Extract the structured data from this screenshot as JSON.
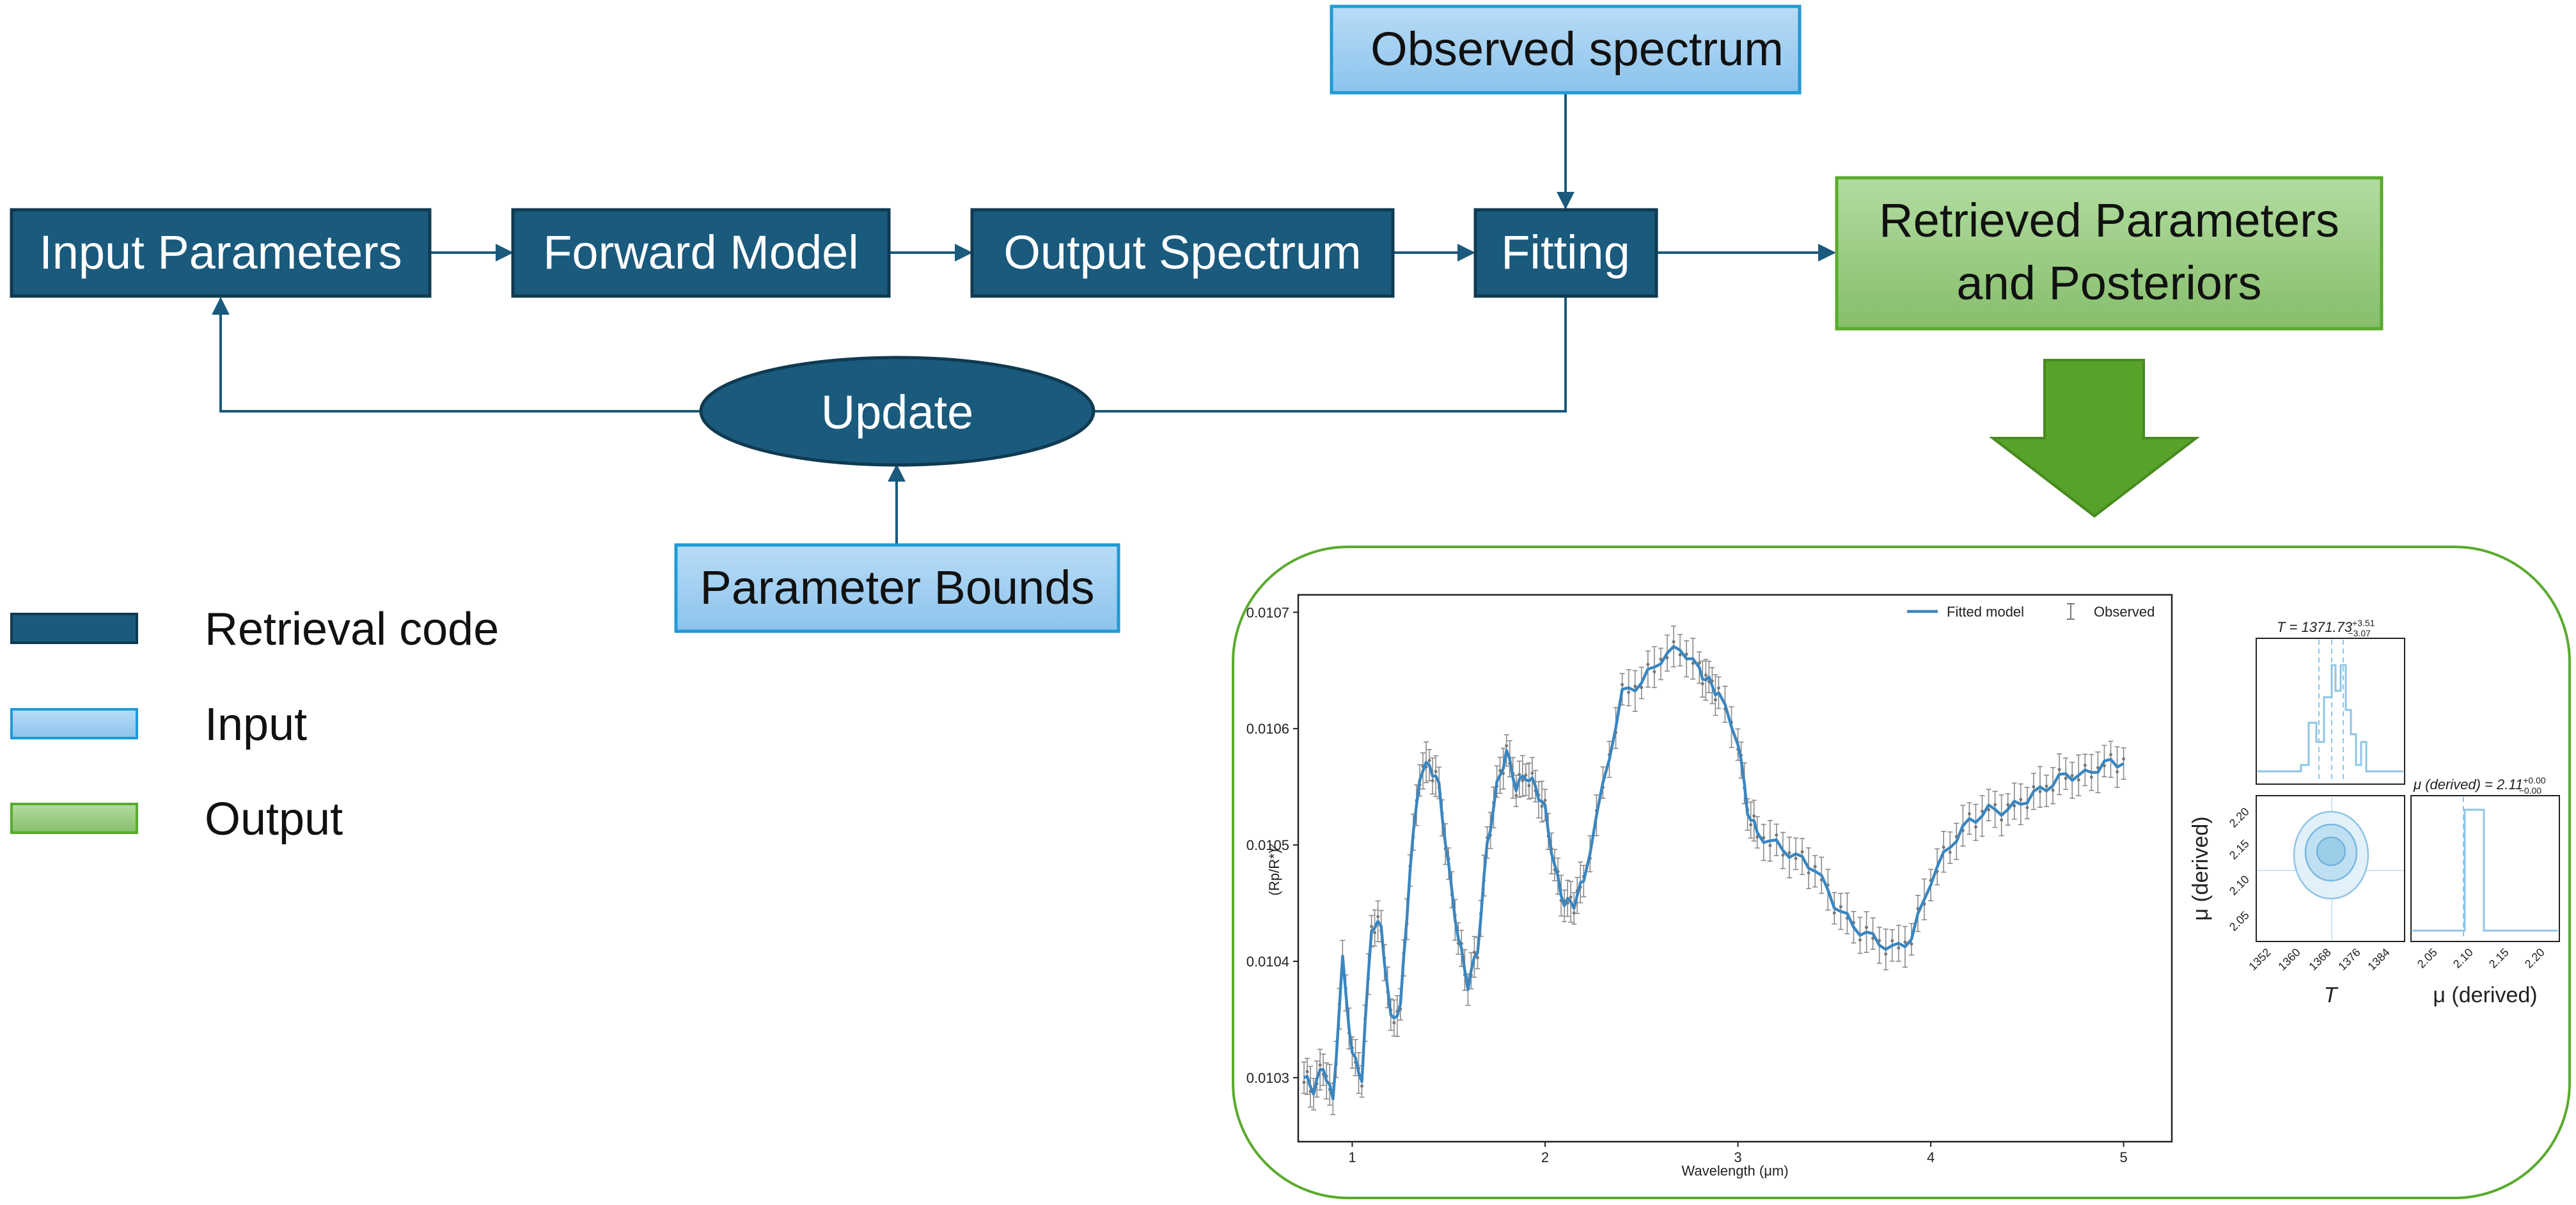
{
  "diagram": {
    "nodes": {
      "input_parameters": "Input Parameters",
      "forward_model": "Forward Model",
      "output_spectrum": "Output Spectrum",
      "fitting": "Fitting",
      "observed_spectrum": "Observed spectrum",
      "retrieved_line1": "Retrieved Parameters",
      "retrieved_line2": "and Posteriors",
      "update": "Update",
      "parameter_bounds": "Parameter Bounds"
    },
    "legend": [
      {
        "label": "Retrieval code",
        "color": "#1a5a7c"
      },
      {
        "label": "Input",
        "color": "#9ecdf0"
      },
      {
        "label": "Output",
        "color": "#93c77a"
      }
    ],
    "colors": {
      "retrieval_code": "#1a5a7c",
      "input": "#9ecdf0",
      "output": "#93c77a",
      "output_border": "#5aaa2e",
      "input_border": "#1f9ad6",
      "arrow": "#1a5a7c",
      "big_arrow": "#58a22b"
    }
  },
  "spectrum_plot": {
    "chart_data": {
      "type": "line",
      "xlabel": "Wavelength (μm)",
      "ylabel": "(Rp/R*)²",
      "xticks": [
        "1",
        "2",
        "3",
        "4",
        "5"
      ],
      "yticks": [
        "0.0103",
        "0.0104",
        "0.0105",
        "0.0106",
        "0.0107"
      ],
      "xlim": [
        0.72,
        5.25
      ],
      "ylim": [
        0.010245,
        0.010715
      ],
      "legend_position": "top-right",
      "series": [
        {
          "name": "Fitted model",
          "color": "#3a86c0"
        },
        {
          "name": "Observed",
          "color": "#777777"
        }
      ],
      "anchor_x": [
        0.75,
        0.8,
        0.85,
        0.9,
        0.95,
        1.0,
        1.05,
        1.1,
        1.15,
        1.2,
        1.25,
        1.3,
        1.35,
        1.4,
        1.45,
        1.5,
        1.55,
        1.6,
        1.65,
        1.7,
        1.75,
        1.8,
        1.85,
        1.9,
        1.95,
        2.0,
        2.05,
        2.1,
        2.15,
        2.2,
        2.3,
        2.4,
        2.5,
        2.6,
        2.7,
        2.8,
        2.85,
        2.9,
        3.0,
        3.05,
        3.1,
        3.2,
        3.3,
        3.4,
        3.5,
        3.6,
        3.7,
        3.8,
        3.9,
        4.0,
        4.1,
        4.2,
        4.3,
        4.4,
        4.5,
        4.6,
        4.7,
        4.8,
        4.9,
        5.0
      ],
      "anchor_y": [
        0.0103,
        0.01029,
        0.01031,
        0.01028,
        0.0104,
        0.01032,
        0.0103,
        0.01043,
        0.01043,
        0.01035,
        0.01036,
        0.01048,
        0.01056,
        0.01057,
        0.01055,
        0.01048,
        0.01042,
        0.01038,
        0.01041,
        0.0105,
        0.01055,
        0.01058,
        0.01055,
        0.01056,
        0.01055,
        0.01053,
        0.01048,
        0.01045,
        0.01045,
        0.01047,
        0.01055,
        0.01063,
        0.01064,
        0.01066,
        0.01067,
        0.01065,
        0.01064,
        0.01063,
        0.01059,
        0.01053,
        0.01051,
        0.0105,
        0.01049,
        0.01048,
        0.01045,
        0.01043,
        0.01042,
        0.01041,
        0.01042,
        0.01047,
        0.0105,
        0.01052,
        0.01053,
        0.01053,
        0.01054,
        0.01055,
        0.01056,
        0.01056,
        0.01057,
        0.01057
      ]
    }
  },
  "corner_plot": {
    "t_title": "T = 1371.73",
    "t_err_up": "+3.51",
    "t_err_down": "−3.07",
    "mu_title": "μ (derived) = 2.11",
    "mu_err_up": "+0.00",
    "mu_err_down": "−0.00",
    "x_label_t": "T",
    "x_label_mu": "μ (derived)",
    "y_label_mu": "μ (derived)",
    "t_ticks": [
      "1352",
      "1360",
      "1368",
      "1376",
      "1384"
    ],
    "mu_ticks": [
      "2.05",
      "2.10",
      "2.15",
      "2.20"
    ],
    "mu_yticks": [
      "2.20",
      "2.15",
      "2.10",
      "2.05"
    ]
  }
}
